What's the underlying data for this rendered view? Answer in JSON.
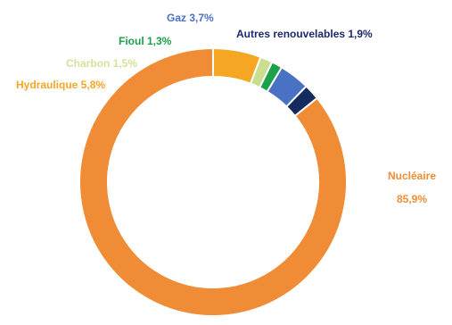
{
  "chart_data": {
    "type": "pie",
    "variant": "donut",
    "title": "",
    "legend": "none",
    "series": [
      {
        "slices": [
          {
            "name": "Nucléaire",
            "value": 85.9,
            "label_line1": "Nucléaire",
            "label_line2": "85,9%",
            "color": "#f08c35",
            "label_color": "#f08c35"
          },
          {
            "name": "Hydraulique",
            "value": 5.8,
            "label": "Hydraulique 5,8%",
            "color": "#f5a623",
            "label_color": "#f5a623"
          },
          {
            "name": "Charbon",
            "value": 1.5,
            "label": "Charbon 1,5%",
            "color": "#c9de8f",
            "label_color": "#d3e39a"
          },
          {
            "name": "Fioul",
            "value": 1.3,
            "label": "Fioul 1,3%",
            "color": "#1aa14a",
            "label_color": "#1aa14a"
          },
          {
            "name": "Gaz",
            "value": 3.7,
            "label": "Gaz 3,7%",
            "color": "#4a72c4",
            "label_color": "#4a72c4"
          },
          {
            "name": "Autres renouvelables",
            "value": 1.9,
            "label": "Autres renouvelables 1,9%",
            "color": "#152a5e",
            "label_color": "#1b2a6b"
          }
        ]
      }
    ]
  }
}
